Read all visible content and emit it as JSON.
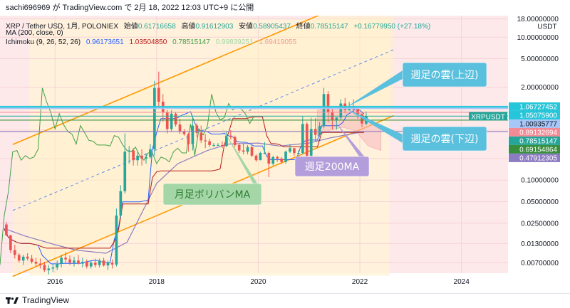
{
  "header": {
    "text": "sachi696969 が TradingView.com で 2月 18, 2022 12:03 UTC+9 に公開"
  },
  "legend": {
    "line1": {
      "symbol": "XRP / Tether USD, 1月, POLONIEX",
      "open_label": "始値",
      "open": "0.61716658",
      "high_label": "高値",
      "high": "0.91612903",
      "low_label": "安値",
      "low": "0.58905437",
      "close_label": "終値",
      "close": "0.78515147",
      "change": "+0.16779950 (+27.18%)"
    },
    "line2": {
      "name": "MA (200, close, 0)"
    },
    "line3": {
      "name": "Ichimoku (9, 26, 52, 26)",
      "v1": "0.96173651",
      "v2": "1.03504850",
      "v3": "0.78515147",
      "v4": "0.99839251",
      "v5": "1.69419055"
    }
  },
  "footer": {
    "brand": "TradingView"
  },
  "chart_data": {
    "type": "candlestick",
    "symbol": "XRPUSDT",
    "timeframe": "1M",
    "y_scale": "log",
    "ylim": [
      0.005,
      20
    ],
    "x_range": [
      "2014-12",
      "2024-12"
    ],
    "x_ticks": [
      "2016",
      "2018",
      "2020",
      "2022",
      "2024"
    ],
    "y_ticks": [
      "18.00000000",
      "10.00000000",
      "5.00000000",
      "2.00000000",
      "1.00000000",
      "0.50000000",
      "0.20000000",
      "0.10000000",
      "0.05000000",
      "0.02500000",
      "0.01300000",
      "0.00700000"
    ],
    "currency_label": "USDT",
    "price_badges": [
      {
        "text": "1.06727452",
        "value": 1.06727452,
        "color": "#26c6da"
      },
      {
        "text": "1.05075900",
        "value": 1.050759,
        "color": "#26c6da"
      },
      {
        "text": "1.00935777",
        "value": 1.00935777,
        "color": "#a7c7f9"
      },
      {
        "text": "0.89132694",
        "value": 0.89132694,
        "color": "#f28b96"
      },
      {
        "text": "0.78515147",
        "value": 0.78515147,
        "color": "#26a69a"
      },
      {
        "text": "0.69154864",
        "value": 0.69154864,
        "color": "#388e3c"
      },
      {
        "text": "0.47912305",
        "value": 0.47912305,
        "color": "#8e7cc3"
      }
    ],
    "symbol_tag": "XRPUSDT",
    "annotations": [
      {
        "text": "週足の雲(上辺)",
        "color": "#5bc0de"
      },
      {
        "text": "週足の雲(下辺)",
        "color": "#5bc0de"
      },
      {
        "text": "週足200MA",
        "color": "#b39ddb"
      },
      {
        "text": "月足ボリバンMA",
        "color": "#a5d6a7"
      }
    ],
    "candles": [
      [
        "2015-01",
        0.024,
        0.026,
        0.0165,
        0.017
      ],
      [
        "2015-02",
        0.017,
        0.015,
        0.0095,
        0.0105
      ],
      [
        "2015-03",
        0.0105,
        0.0125,
        0.008,
        0.009
      ],
      [
        "2015-04",
        0.009,
        0.0095,
        0.007,
        0.0075
      ],
      [
        "2015-05",
        0.0075,
        0.009,
        0.0065,
        0.0085
      ],
      [
        "2015-06",
        0.0085,
        0.0095,
        0.0075,
        0.008
      ],
      [
        "2015-07",
        0.008,
        0.009,
        0.0068,
        0.0072
      ],
      [
        "2015-08",
        0.0072,
        0.0082,
        0.0062,
        0.0068
      ],
      [
        "2015-09",
        0.0068,
        0.008,
        0.0058,
        0.0065
      ],
      [
        "2015-10",
        0.0065,
        0.0072,
        0.0052,
        0.0055
      ],
      [
        "2015-11",
        0.0055,
        0.0065,
        0.0048,
        0.0058
      ],
      [
        "2015-12",
        0.0058,
        0.0068,
        0.0052,
        0.006
      ],
      [
        "2016-01",
        0.006,
        0.0075,
        0.0055,
        0.0068
      ],
      [
        "2016-02",
        0.0068,
        0.009,
        0.006,
        0.0082
      ],
      [
        "2016-03",
        0.0082,
        0.0098,
        0.007,
        0.0078
      ],
      [
        "2016-04",
        0.0078,
        0.0088,
        0.0065,
        0.007
      ],
      [
        "2016-05",
        0.007,
        0.0085,
        0.0062,
        0.0075
      ],
      [
        "2016-06",
        0.0075,
        0.009,
        0.0066,
        0.0068
      ],
      [
        "2016-07",
        0.0068,
        0.0082,
        0.006,
        0.0072
      ],
      [
        "2016-08",
        0.0072,
        0.0078,
        0.0058,
        0.0062
      ],
      [
        "2016-09",
        0.0062,
        0.0075,
        0.0058,
        0.007
      ],
      [
        "2016-10",
        0.007,
        0.008,
        0.006,
        0.0065
      ],
      [
        "2016-11",
        0.0065,
        0.008,
        0.006,
        0.0075
      ],
      [
        "2016-12",
        0.0075,
        0.0082,
        0.0062,
        0.0064
      ],
      [
        "2017-01",
        0.0064,
        0.0075,
        0.0055,
        0.007
      ],
      [
        "2017-02",
        0.007,
        0.0078,
        0.0058,
        0.0066
      ],
      [
        "2017-03",
        0.0066,
        0.04,
        0.0062,
        0.032
      ],
      [
        "2017-04",
        0.032,
        0.085,
        0.03,
        0.07
      ],
      [
        "2017-05",
        0.07,
        0.45,
        0.065,
        0.25
      ],
      [
        "2017-06",
        0.25,
        0.3,
        0.17,
        0.26
      ],
      [
        "2017-07",
        0.26,
        0.28,
        0.16,
        0.19
      ],
      [
        "2017-08",
        0.19,
        0.25,
        0.16,
        0.22
      ],
      [
        "2017-09",
        0.22,
        0.27,
        0.16,
        0.2
      ],
      [
        "2017-10",
        0.2,
        0.24,
        0.17,
        0.21
      ],
      [
        "2017-11",
        0.21,
        0.32,
        0.2,
        0.27
      ],
      [
        "2017-12",
        0.27,
        2.45,
        0.22,
        1.95
      ],
      [
        "2018-01",
        1.95,
        3.3,
        1.05,
        1.25
      ],
      [
        "2018-02",
        1.25,
        1.6,
        0.65,
        0.88
      ],
      [
        "2018-03",
        0.88,
        0.96,
        0.45,
        0.52
      ],
      [
        "2018-04",
        0.52,
        0.95,
        0.48,
        0.85
      ],
      [
        "2018-05",
        0.85,
        0.9,
        0.56,
        0.6
      ],
      [
        "2018-06",
        0.6,
        0.72,
        0.44,
        0.48
      ],
      [
        "2018-07",
        0.48,
        0.52,
        0.42,
        0.44
      ],
      [
        "2018-08",
        0.44,
        0.46,
        0.25,
        0.32
      ],
      [
        "2018-09",
        0.32,
        0.78,
        0.26,
        0.58
      ],
      [
        "2018-10",
        0.58,
        0.62,
        0.4,
        0.46
      ],
      [
        "2018-11",
        0.46,
        0.58,
        0.33,
        0.36
      ],
      [
        "2018-12",
        0.36,
        0.44,
        0.28,
        0.35
      ],
      [
        "2019-01",
        0.35,
        0.38,
        0.29,
        0.31
      ],
      [
        "2019-02",
        0.31,
        0.33,
        0.29,
        0.31
      ],
      [
        "2019-03",
        0.31,
        0.33,
        0.3,
        0.31
      ],
      [
        "2019-04",
        0.31,
        0.35,
        0.28,
        0.3
      ],
      [
        "2019-05",
        0.3,
        0.48,
        0.29,
        0.42
      ],
      [
        "2019-06",
        0.42,
        0.5,
        0.37,
        0.4
      ],
      [
        "2019-07",
        0.4,
        0.42,
        0.29,
        0.31
      ],
      [
        "2019-08",
        0.31,
        0.33,
        0.24,
        0.26
      ],
      [
        "2019-09",
        0.26,
        0.32,
        0.23,
        0.25
      ],
      [
        "2019-10",
        0.25,
        0.31,
        0.23,
        0.29
      ],
      [
        "2019-11",
        0.29,
        0.31,
        0.21,
        0.22
      ],
      [
        "2019-12",
        0.22,
        0.23,
        0.18,
        0.19
      ],
      [
        "2020-01",
        0.19,
        0.25,
        0.19,
        0.24
      ],
      [
        "2020-02",
        0.24,
        0.34,
        0.23,
        0.24
      ],
      [
        "2020-03",
        0.24,
        0.25,
        0.11,
        0.17
      ],
      [
        "2020-04",
        0.17,
        0.22,
        0.16,
        0.21
      ],
      [
        "2020-05",
        0.21,
        0.22,
        0.18,
        0.2
      ],
      [
        "2020-06",
        0.2,
        0.21,
        0.17,
        0.18
      ],
      [
        "2020-07",
        0.18,
        0.26,
        0.17,
        0.25
      ],
      [
        "2020-08",
        0.25,
        0.32,
        0.24,
        0.28
      ],
      [
        "2020-09",
        0.28,
        0.28,
        0.22,
        0.24
      ],
      [
        "2020-10",
        0.24,
        0.26,
        0.23,
        0.24
      ],
      [
        "2020-11",
        0.24,
        0.78,
        0.23,
        0.61
      ],
      [
        "2020-12",
        0.61,
        0.65,
        0.17,
        0.22
      ],
      [
        "2021-01",
        0.22,
        0.75,
        0.21,
        0.52
      ],
      [
        "2021-02",
        0.52,
        0.74,
        0.35,
        0.43
      ],
      [
        "2021-03",
        0.43,
        0.65,
        0.4,
        0.57
      ],
      [
        "2021-04",
        0.57,
        1.96,
        0.53,
        1.6
      ],
      [
        "2021-05",
        1.6,
        1.76,
        0.65,
        0.89
      ],
      [
        "2021-06",
        0.89,
        0.99,
        0.51,
        0.7
      ],
      [
        "2021-07",
        0.7,
        0.76,
        0.51,
        0.75
      ],
      [
        "2021-08",
        0.75,
        1.35,
        0.7,
        1.18
      ],
      [
        "2021-09",
        1.18,
        1.41,
        0.86,
        0.96
      ],
      [
        "2021-10",
        0.96,
        1.24,
        0.94,
        1.08
      ],
      [
        "2021-11",
        1.08,
        1.35,
        0.9,
        0.99
      ],
      [
        "2021-12",
        0.99,
        1.03,
        0.72,
        0.84
      ],
      [
        "2022-01",
        0.84,
        0.91,
        0.55,
        0.62
      ],
      [
        "2022-02",
        0.61716658,
        0.91612903,
        0.58905437,
        0.78515147
      ]
    ],
    "ma200_weekly": [
      [
        "2015-01",
        0.021
      ],
      [
        "2015-06",
        0.0165
      ],
      [
        "2016-01",
        0.0125
      ],
      [
        "2016-06",
        0.0105
      ],
      [
        "2017-01",
        0.0095
      ],
      [
        "2017-06",
        0.0135
      ],
      [
        "2018-01",
        0.09
      ],
      [
        "2018-06",
        0.17
      ],
      [
        "2019-01",
        0.26
      ],
      [
        "2019-06",
        0.32
      ],
      [
        "2020-01",
        0.33
      ],
      [
        "2020-06",
        0.3
      ],
      [
        "2021-01",
        0.33
      ],
      [
        "2021-06",
        0.39
      ],
      [
        "2022-02",
        0.47912305
      ]
    ],
    "ichimoku_cloud": {
      "kumo": [
        [
          "2021-03",
          0.42,
          0.95
        ],
        [
          "2021-06",
          0.5,
          1.05
        ],
        [
          "2021-09",
          0.55,
          1.1
        ],
        [
          "2021-12",
          0.48912305,
          0.94
        ],
        [
          "2022-03",
          0.3,
          0.72
        ],
        [
          "2022-06",
          0.26,
          0.52
        ]
      ]
    }
  }
}
